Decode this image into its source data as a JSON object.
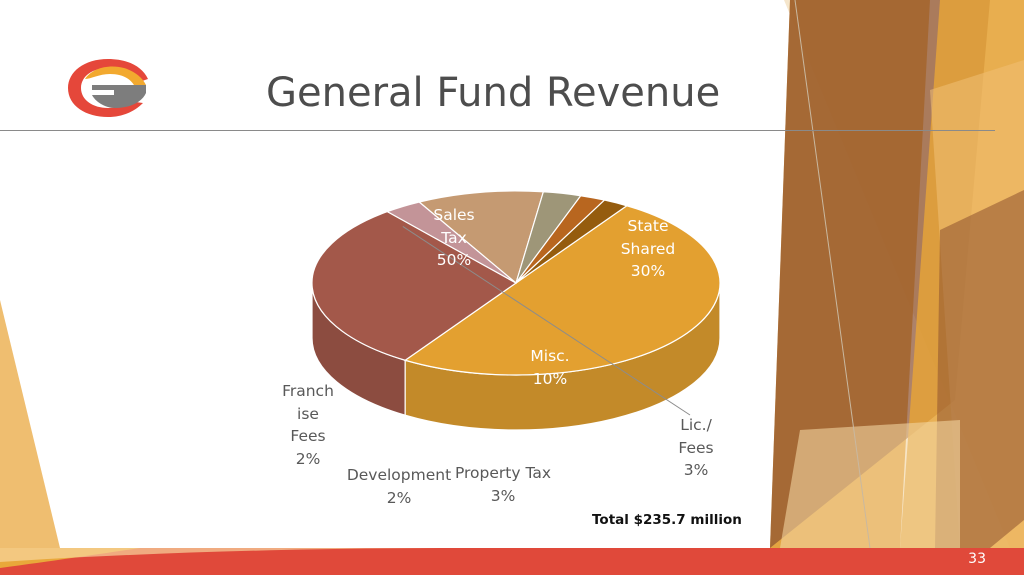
{
  "slide": {
    "title": "General Fund Revenue",
    "total": "Total $235.7 million",
    "page_number": "33"
  },
  "colors": {
    "sales_tax": "#E3A030",
    "state_shared": "#A3584A",
    "lic_fees": "#C39498",
    "misc": "#C59A72",
    "property_tax": "#9E9678",
    "development": "#B8661F",
    "franchise_fees": "#955C0E",
    "accent_orange": "#E8A33A",
    "accent_red": "#E0493A"
  },
  "chart_data": {
    "type": "pie",
    "title": "",
    "slices": [
      {
        "label_lines": [
          "Sales",
          "Tax",
          "50%"
        ],
        "value": 50,
        "color": "#E3A030"
      },
      {
        "label_lines": [
          "State",
          "Shared",
          "30%"
        ],
        "value": 30,
        "color": "#A3584A"
      },
      {
        "label_lines": [
          "Lic./",
          "Fees",
          "3%"
        ],
        "value": 3,
        "color": "#C39498"
      },
      {
        "label_lines": [
          "Misc.",
          "10%"
        ],
        "value": 10,
        "color": "#C59A72"
      },
      {
        "label_lines": [
          "Property Tax",
          "3%"
        ],
        "value": 3,
        "color": "#9E9678"
      },
      {
        "label_lines": [
          "Development",
          "2%"
        ],
        "value": 2,
        "color": "#B8661F"
      },
      {
        "label_lines": [
          "Franch",
          "ise",
          "Fees",
          "2%"
        ],
        "value": 2,
        "color": "#955C0E"
      }
    ]
  }
}
